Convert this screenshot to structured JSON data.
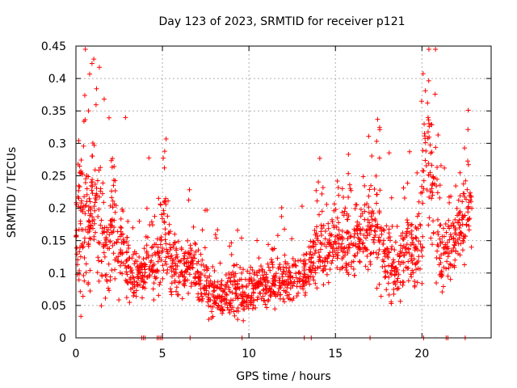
{
  "chart_data": {
    "type": "scatter",
    "title": "Day 123 of 2023, SRMTID for receiver p121",
    "xlabel": "GPS time / hours",
    "ylabel": "SRMTID / TECUs",
    "xlim": [
      0,
      24
    ],
    "ylim": [
      0,
      0.45
    ],
    "x_ticks": [
      0,
      5,
      10,
      15,
      20
    ],
    "x_tick_labels": [
      "0",
      "5",
      "10",
      "15",
      "20"
    ],
    "y_ticks": [
      0,
      0.05,
      0.1,
      0.15,
      0.2,
      0.25,
      0.3,
      0.35,
      0.4,
      0.45
    ],
    "y_tick_labels": [
      "0",
      "0.05",
      "0.1",
      "0.15",
      "0.2",
      "0.25",
      "0.3",
      "0.35",
      "0.4",
      "0.45"
    ],
    "grid": true,
    "marker": "+",
    "color": "#ff0000",
    "zero_markers_x": [
      3.8,
      3.9,
      4.0,
      4.7,
      4.8,
      4.9,
      5.0,
      6.6,
      9.6,
      13.2,
      13.6,
      17.0,
      20.1,
      21.4,
      21.5,
      22.5
    ],
    "envelope": [
      [
        0.0,
        0.15,
        0.06
      ],
      [
        0.2,
        0.17,
        0.07
      ],
      [
        0.4,
        0.22,
        0.1
      ],
      [
        0.6,
        0.18,
        0.07
      ],
      [
        0.8,
        0.16,
        0.06
      ],
      [
        1.0,
        0.2,
        0.07
      ],
      [
        1.3,
        0.21,
        0.08
      ],
      [
        1.6,
        0.14,
        0.06
      ],
      [
        1.9,
        0.13,
        0.06
      ],
      [
        2.1,
        0.2,
        0.07
      ],
      [
        2.4,
        0.15,
        0.05
      ],
      [
        2.7,
        0.14,
        0.05
      ],
      [
        3.0,
        0.11,
        0.04
      ],
      [
        3.3,
        0.09,
        0.03
      ],
      [
        3.6,
        0.09,
        0.02
      ],
      [
        3.9,
        0.1,
        0.03
      ],
      [
        4.2,
        0.14,
        0.04
      ],
      [
        4.5,
        0.11,
        0.03
      ],
      [
        4.8,
        0.12,
        0.03
      ],
      [
        5.1,
        0.17,
        0.05
      ],
      [
        5.4,
        0.14,
        0.04
      ],
      [
        5.7,
        0.1,
        0.04
      ],
      [
        6.0,
        0.1,
        0.03
      ],
      [
        6.3,
        0.11,
        0.03
      ],
      [
        6.6,
        0.12,
        0.03
      ],
      [
        6.9,
        0.1,
        0.03
      ],
      [
        7.2,
        0.09,
        0.03
      ],
      [
        7.5,
        0.08,
        0.03
      ],
      [
        7.8,
        0.07,
        0.025
      ],
      [
        8.1,
        0.07,
        0.025
      ],
      [
        8.4,
        0.065,
        0.025
      ],
      [
        8.7,
        0.07,
        0.025
      ],
      [
        9.0,
        0.075,
        0.025
      ],
      [
        9.3,
        0.07,
        0.025
      ],
      [
        9.6,
        0.065,
        0.025
      ],
      [
        9.9,
        0.07,
        0.025
      ],
      [
        10.2,
        0.075,
        0.025
      ],
      [
        10.5,
        0.08,
        0.025
      ],
      [
        10.8,
        0.085,
        0.025
      ],
      [
        11.1,
        0.08,
        0.025
      ],
      [
        11.4,
        0.085,
        0.025
      ],
      [
        11.7,
        0.09,
        0.025
      ],
      [
        12.0,
        0.09,
        0.03
      ],
      [
        12.3,
        0.085,
        0.03
      ],
      [
        12.6,
        0.09,
        0.03
      ],
      [
        13.0,
        0.09,
        0.03
      ],
      [
        13.3,
        0.1,
        0.03
      ],
      [
        13.6,
        0.12,
        0.03
      ],
      [
        13.9,
        0.13,
        0.035
      ],
      [
        14.2,
        0.14,
        0.035
      ],
      [
        14.5,
        0.13,
        0.035
      ],
      [
        14.8,
        0.14,
        0.035
      ],
      [
        15.1,
        0.13,
        0.04
      ],
      [
        15.4,
        0.15,
        0.04
      ],
      [
        15.7,
        0.15,
        0.04
      ],
      [
        16.0,
        0.14,
        0.04
      ],
      [
        16.3,
        0.15,
        0.04
      ],
      [
        16.6,
        0.16,
        0.04
      ],
      [
        16.9,
        0.17,
        0.05
      ],
      [
        17.2,
        0.18,
        0.05
      ],
      [
        17.5,
        0.16,
        0.05
      ],
      [
        17.8,
        0.13,
        0.04
      ],
      [
        18.1,
        0.12,
        0.04
      ],
      [
        18.4,
        0.1,
        0.035
      ],
      [
        18.7,
        0.11,
        0.04
      ],
      [
        19.0,
        0.12,
        0.04
      ],
      [
        19.3,
        0.15,
        0.05
      ],
      [
        19.6,
        0.13,
        0.04
      ],
      [
        19.9,
        0.17,
        0.06
      ],
      [
        20.2,
        0.3,
        0.08
      ],
      [
        20.5,
        0.25,
        0.08
      ],
      [
        20.8,
        0.2,
        0.07
      ],
      [
        21.1,
        0.12,
        0.04
      ],
      [
        21.4,
        0.14,
        0.04
      ],
      [
        21.7,
        0.14,
        0.04
      ],
      [
        22.0,
        0.16,
        0.04
      ],
      [
        22.3,
        0.18,
        0.04
      ],
      [
        22.6,
        0.19,
        0.04
      ],
      [
        22.9,
        0.2,
        0.04
      ]
    ]
  }
}
